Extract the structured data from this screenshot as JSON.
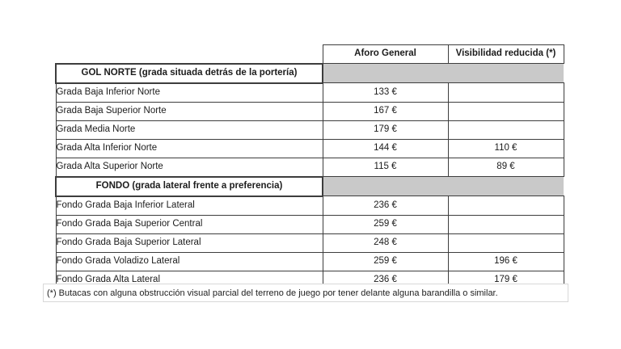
{
  "table": {
    "header": {
      "aforo_general": "Aforo General",
      "visibilidad_reducida": "Visibilidad reducida (*)"
    },
    "sections": [
      {
        "title": "GOL NORTE (grada situada detrás de la portería)",
        "rows": [
          {
            "label": "Grada Baja Inferior Norte",
            "aforo": "133 €",
            "visibilidad": ""
          },
          {
            "label": "Grada Baja Superior Norte",
            "aforo": "167 €",
            "visibilidad": ""
          },
          {
            "label": "Grada Media Norte",
            "aforo": "179 €",
            "visibilidad": ""
          },
          {
            "label": "Grada Alta Inferior Norte",
            "aforo": "144 €",
            "visibilidad": "110 €"
          },
          {
            "label": "Grada Alta Superior Norte",
            "aforo": "115 €",
            "visibilidad": "89 €"
          }
        ]
      },
      {
        "title": "FONDO (grada lateral frente a preferencia)",
        "rows": [
          {
            "label": "Fondo Grada Baja Inferior Lateral",
            "aforo": "236 €",
            "visibilidad": ""
          },
          {
            "label": "Fondo Grada Baja Superior Central",
            "aforo": "259 €",
            "visibilidad": ""
          },
          {
            "label": "Fondo Grada Baja Superior Lateral",
            "aforo": "248 €",
            "visibilidad": ""
          },
          {
            "label": "Fondo Grada Voladizo Lateral",
            "aforo": "259 €",
            "visibilidad": "196 €"
          },
          {
            "label": "Fondo Grada Alta Lateral",
            "aforo": "236 €",
            "visibilidad": "179 €"
          }
        ]
      }
    ]
  },
  "footnote": "(*) Butacas con alguna obstrucción visual parcial del terreno de juego por tener delante alguna barandilla o similar.",
  "colors": {
    "section_fill": "#c9c9c9",
    "border_dark": "#3d3d3d",
    "border_light": "#d8d8d8"
  }
}
